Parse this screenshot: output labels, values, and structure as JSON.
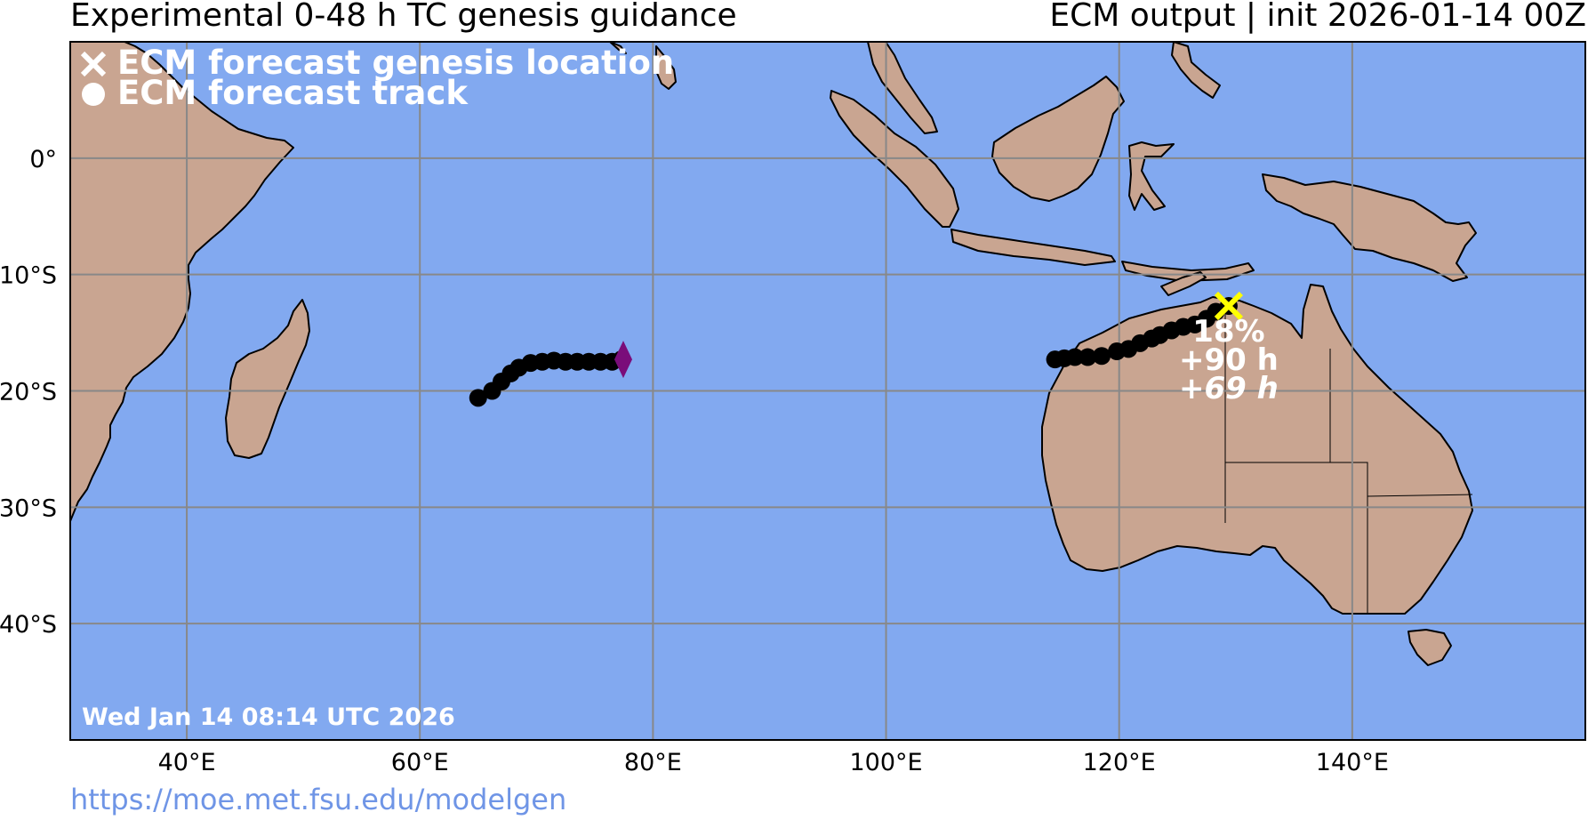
{
  "header": {
    "title": "Experimental 0-48 h TC genesis guidance",
    "subtitle": "ECM output | init 2026-01-14 00Z"
  },
  "footer": {
    "url": "https://moe.met.fsu.edu/modelgen"
  },
  "map": {
    "extent": {
      "lon": [
        30,
        160
      ],
      "lat": [
        -50,
        10
      ]
    },
    "lon_ticks": [
      40,
      60,
      80,
      100,
      120,
      140
    ],
    "lat_ticks": [
      0,
      -10,
      -20,
      -30,
      -40
    ],
    "lon_tick_labels": [
      "40°E",
      "60°E",
      "80°E",
      "100°E",
      "120°E",
      "140°E"
    ],
    "lat_tick_labels": [
      "0°",
      "10°S",
      "20°S",
      "30°S",
      "40°S"
    ],
    "gridlines": true,
    "colors": {
      "ocean": "#82a9f0",
      "land": "#c9a591",
      "grid": "#888888",
      "track": "#000000",
      "genesis_marker": "#ffff00",
      "west_marker": "#7a0d7a"
    },
    "legend": {
      "genesis_label": "ECM forecast genesis location",
      "track_label": "ECM forecast track",
      "placement": "top-left"
    },
    "timestamp": "Wed Jan 14 08:14 UTC 2026"
  },
  "tracks": [
    {
      "marker": "diamond",
      "points": [
        [
          65.0,
          -20.6
        ],
        [
          66.2,
          -20.0
        ],
        [
          67.0,
          -19.2
        ],
        [
          67.8,
          -18.5
        ],
        [
          68.5,
          -18.0
        ],
        [
          69.5,
          -17.6
        ],
        [
          70.5,
          -17.5
        ],
        [
          71.5,
          -17.4
        ],
        [
          72.5,
          -17.5
        ],
        [
          73.5,
          -17.5
        ],
        [
          74.5,
          -17.5
        ],
        [
          75.5,
          -17.5
        ],
        [
          76.5,
          -17.5
        ],
        [
          77.3,
          -17.3
        ]
      ]
    },
    {
      "marker": "x",
      "points": [
        [
          114.5,
          -17.3
        ],
        [
          115.3,
          -17.2
        ],
        [
          116.2,
          -17.1
        ],
        [
          117.3,
          -17.1
        ],
        [
          118.5,
          -17.0
        ],
        [
          119.8,
          -16.6
        ],
        [
          120.8,
          -16.4
        ],
        [
          121.8,
          -15.9
        ],
        [
          122.8,
          -15.5
        ],
        [
          123.5,
          -15.2
        ],
        [
          124.5,
          -14.8
        ],
        [
          125.5,
          -14.5
        ],
        [
          126.5,
          -14.3
        ],
        [
          127.5,
          -13.8
        ],
        [
          128.3,
          -13.2
        ],
        [
          129.4,
          -12.7
        ]
      ],
      "probability": "18%",
      "lead_time": "+90 h",
      "genesis_time": "+69 h"
    }
  ]
}
